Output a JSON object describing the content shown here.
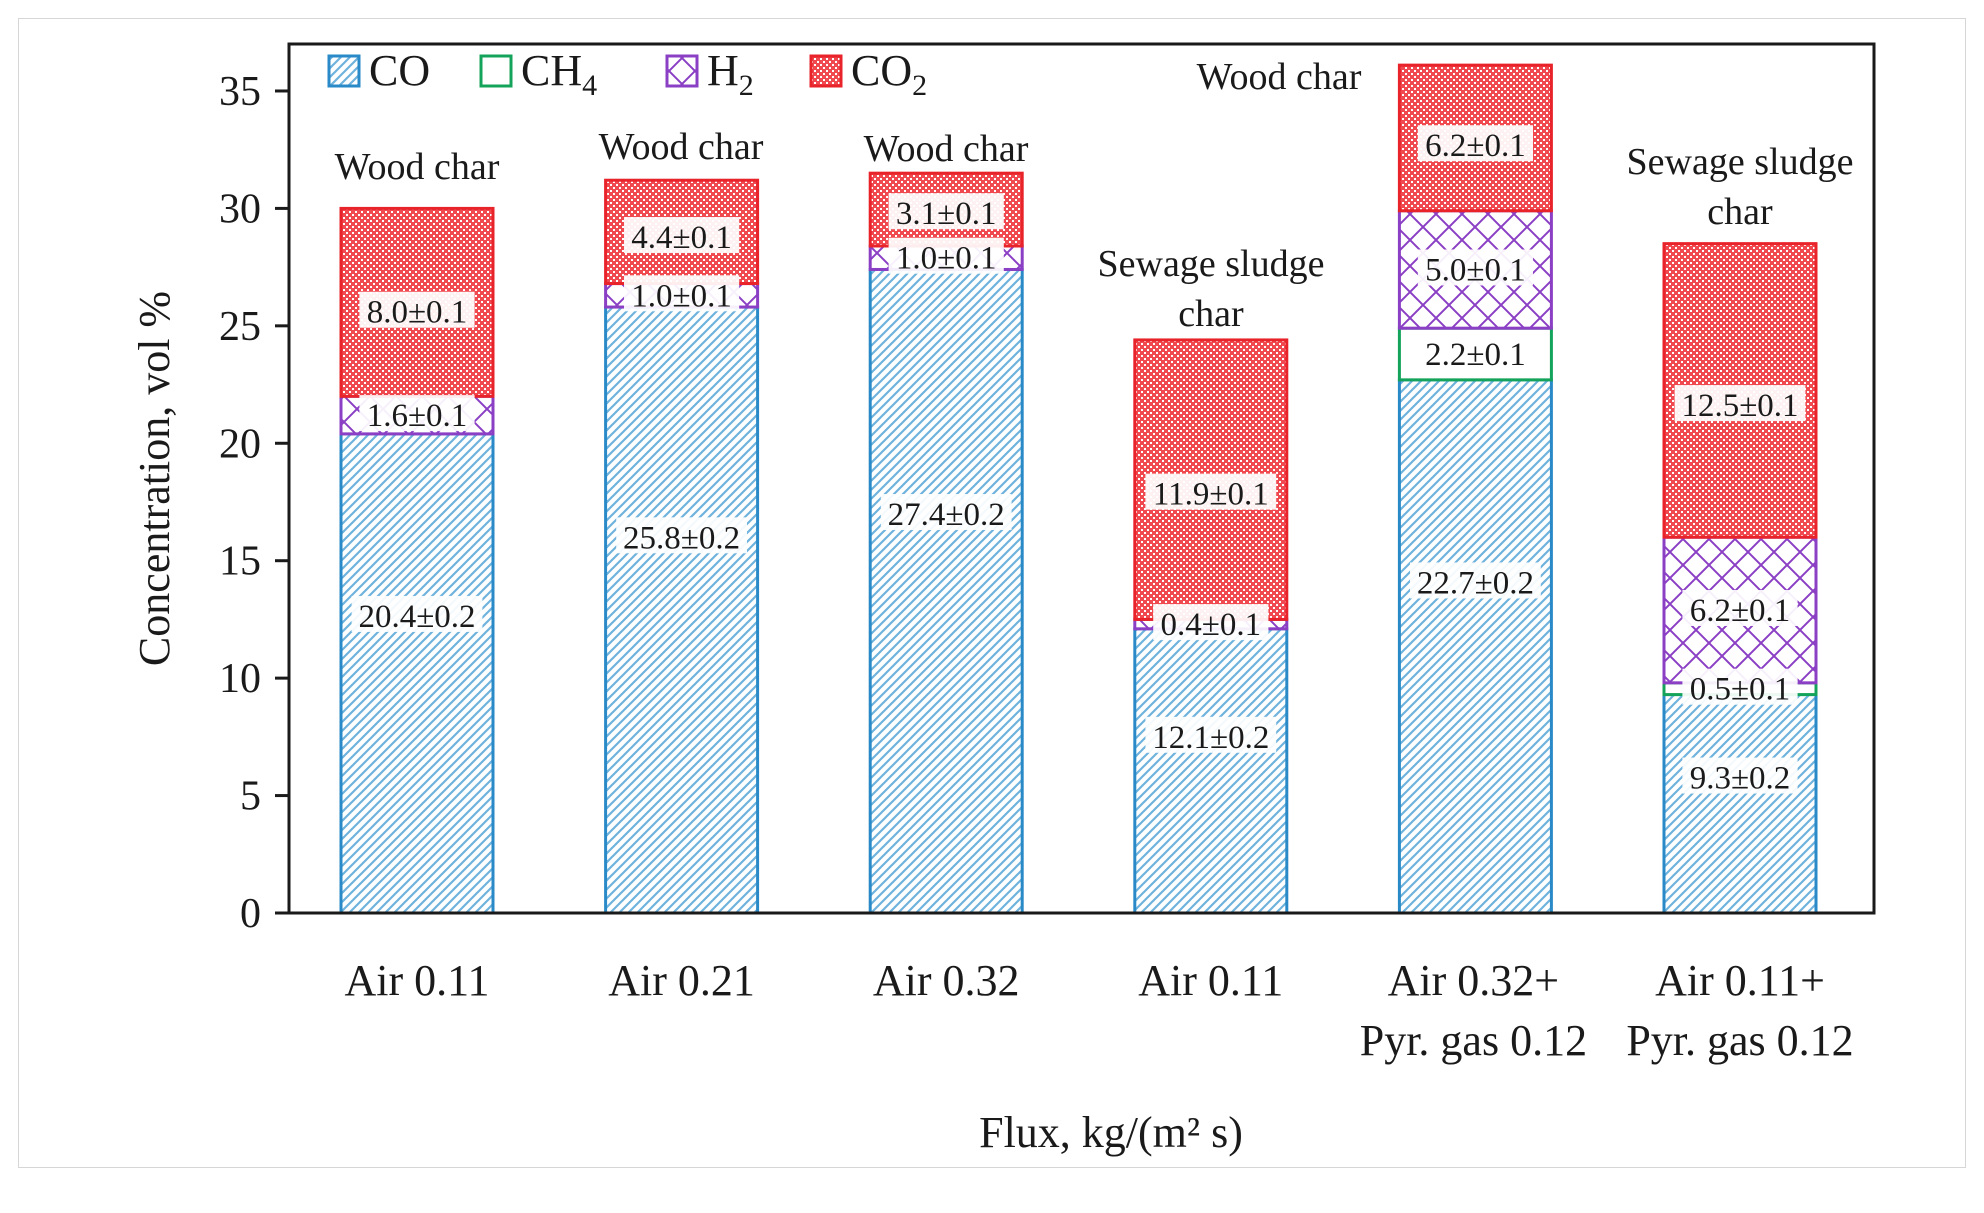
{
  "chart_data": {
    "type": "bar",
    "stacked": true,
    "title": "",
    "xlabel": "Flux, kg/(m² s)",
    "ylabel": "Concentration, vol %",
    "ylim": [
      0,
      37
    ],
    "yticks": [
      0,
      5,
      10,
      15,
      20,
      25,
      30,
      35
    ],
    "grid": false,
    "legend_position": "top-left",
    "categories": [
      [
        "Air 0.11"
      ],
      [
        "Air 0.21"
      ],
      [
        "Air 0.32"
      ],
      [
        "Air 0.11"
      ],
      [
        "Air 0.32+",
        "Pyr. gas 0.12"
      ],
      [
        "Air 0.11+",
        "Pyr. gas 0.12"
      ]
    ],
    "group_labels": [
      [
        "Wood char"
      ],
      [
        "Wood char"
      ],
      [
        "Wood char"
      ],
      [
        "Sewage sludge",
        "char"
      ],
      [
        "Wood char"
      ],
      [
        "Sewage sludge",
        "char"
      ]
    ],
    "series": [
      {
        "name": "CO",
        "sub": "",
        "color": "#2a8ac7",
        "pattern": "diag",
        "values": [
          20.4,
          25.8,
          27.4,
          12.1,
          22.7,
          9.3
        ],
        "labels": [
          "20.4±0.2",
          "25.8±0.2",
          "27.4±0.2",
          "12.1±0.2",
          "22.7±0.2",
          "9.3±0.2"
        ]
      },
      {
        "name": "CH",
        "sub": "4",
        "color": "#14a35a",
        "pattern": "none",
        "values": [
          0,
          0,
          0,
          0,
          2.2,
          0.5
        ],
        "labels": [
          "",
          "",
          "",
          "",
          "2.2±0.1",
          "0.5±0.1"
        ]
      },
      {
        "name": "H",
        "sub": "2",
        "color": "#8a3fc4",
        "pattern": "cross",
        "values": [
          1.6,
          1.0,
          1.0,
          0.4,
          5.0,
          6.2
        ],
        "labels": [
          "1.6±0.1",
          "1.0±0.1",
          "1.0±0.1",
          "0.4±0.1",
          "5.0±0.1",
          "6.2±0.1"
        ]
      },
      {
        "name": "CO",
        "sub": "2",
        "color": "#e8232a",
        "pattern": "dots",
        "values": [
          8.0,
          4.4,
          3.1,
          11.9,
          6.2,
          12.5
        ],
        "labels": [
          "8.0±0.1",
          "4.4±0.1",
          "3.1±0.1",
          "11.9±0.1",
          "6.2±0.1",
          "12.5±0.1"
        ]
      }
    ]
  }
}
